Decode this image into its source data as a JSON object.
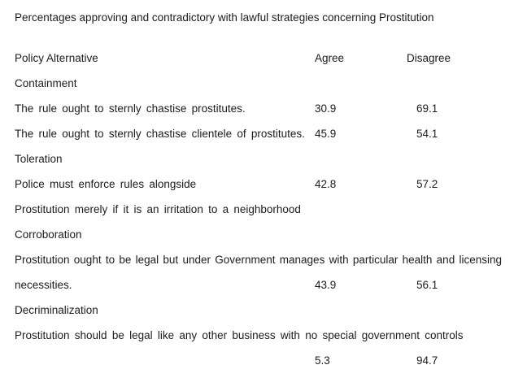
{
  "colors": {
    "background": "#ffffff",
    "text": "#1c1c1c"
  },
  "document": {
    "title": "Percentages approving and contradictory with lawful strategies concerning Prostitution",
    "columns": {
      "policy": "Policy Alternative",
      "agree": "Agree",
      "disagree": "Disagree"
    },
    "sections": [
      {
        "name": "Containment",
        "rows": [
          {
            "text": "The rule ought to sternly chastise prostitutes.",
            "agree": "30.9",
            "disagree": "69.1",
            "full_width": false,
            "justify": false
          },
          {
            "text": "The rule ought to sternly chastise clientele of prostitutes.",
            "agree": "45.9",
            "disagree": "54.1",
            "full_width": false,
            "justify": false
          }
        ]
      },
      {
        "name": "Toleration",
        "rows": [
          {
            "text": "Police must enforce rules alongside",
            "agree": "42.8",
            "disagree": "57.2",
            "full_width": false,
            "justify": false
          },
          {
            "text": "Prostitution merely if it is an irritation to a neighborhood",
            "agree": "",
            "disagree": "",
            "full_width": true,
            "justify": false
          }
        ]
      },
      {
        "name": "Corroboration",
        "rows": [
          {
            "text": "Prostitution ought to be legal but under Government manages with particular health and licensing",
            "agree": "",
            "disagree": "",
            "full_width": true,
            "justify": true
          },
          {
            "text": "necessities.",
            "agree": "43.9",
            "disagree": "56.1",
            "full_width": false,
            "justify": false
          }
        ]
      },
      {
        "name": "Decriminalization",
        "rows": [
          {
            "text": "Prostitution should be legal like any other business with no special government controls",
            "agree": "",
            "disagree": "",
            "full_width": true,
            "justify": false
          },
          {
            "text": "",
            "agree": "5.3",
            "disagree": "94.7",
            "full_width": false,
            "justify": false
          }
        ]
      }
    ]
  }
}
